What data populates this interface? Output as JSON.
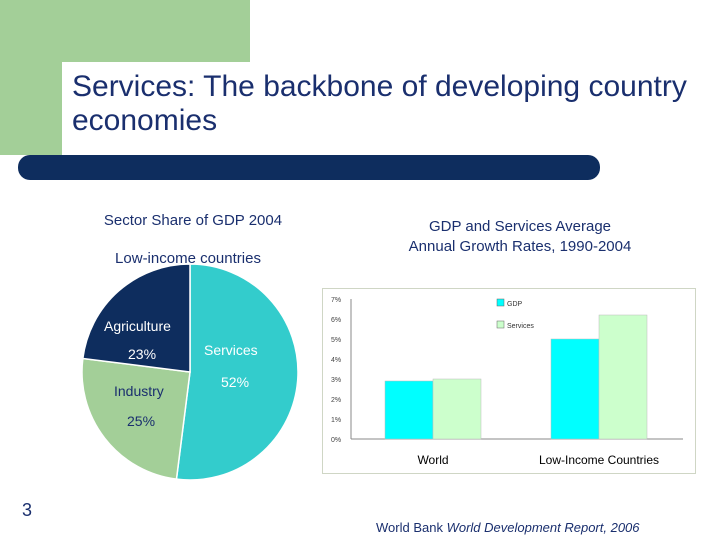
{
  "slide": {
    "title": "Services: The backbone of developing country economies",
    "page_number": "3"
  },
  "left_chart": {
    "caption_line1": "Sector Share of GDP 2004",
    "caption_line2": "Low-income countries"
  },
  "right_chart": {
    "caption_line1": "GDP and Services Average",
    "caption_line2": "Annual Growth Rates, 1990-2004"
  },
  "source": {
    "prefix": "World Bank ",
    "italic": "World Development Report, 2006"
  },
  "chart_data": [
    {
      "type": "pie",
      "title": "Sector Share of GDP 2004 — Low-income countries",
      "labels": [
        "Agriculture",
        "Industry",
        "Services"
      ],
      "values": [
        23,
        25,
        52
      ],
      "value_labels": [
        "23%",
        "25%",
        "52%"
      ],
      "colors": [
        "#0e2d5e",
        "#a3cf98",
        "#33cccc"
      ]
    },
    {
      "type": "bar",
      "title": "GDP and Services Average Annual Growth Rates, 1990-2004",
      "categories": [
        "World",
        "Low-Income Countries"
      ],
      "series": [
        {
          "name": "GDP",
          "values": [
            2.9,
            5.0
          ],
          "color": "#00ffff"
        },
        {
          "name": "Services",
          "values": [
            3.0,
            6.2
          ],
          "color": "#ccffcc"
        }
      ],
      "ylim": [
        0,
        7
      ],
      "yticks": [
        "0%",
        "1%",
        "2%",
        "3%",
        "4%",
        "5%",
        "6%",
        "7%"
      ]
    }
  ]
}
